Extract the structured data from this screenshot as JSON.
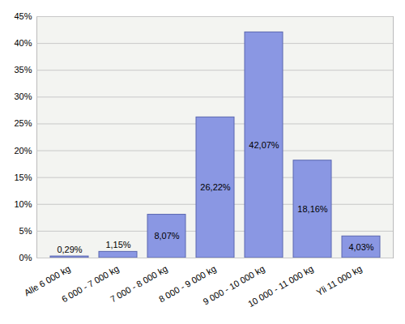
{
  "chart_data": {
    "type": "bar",
    "categories": [
      "Alle 6 000 kg",
      "6 000 - 7 000 kg",
      "7 000 - 8 000 kg",
      "8 000 - 9 000 kg",
      "9 000 - 10 000 kg",
      "10 000 - 11 000 kg",
      "Yli 11 000 kg"
    ],
    "values": [
      0.29,
      1.15,
      8.07,
      26.22,
      42.07,
      18.16,
      4.03
    ],
    "value_labels": [
      "0,29%",
      "1,15%",
      "8,07%",
      "26,22%",
      "42,07%",
      "18,16%",
      "4,03%"
    ],
    "color": "#8a97e3",
    "ylim": [
      0,
      45
    ],
    "yticks": [
      {
        "value": 0,
        "label": "0%"
      },
      {
        "value": 5,
        "label": "5%"
      },
      {
        "value": 10,
        "label": "10%"
      },
      {
        "value": 15,
        "label": "15%"
      },
      {
        "value": 20,
        "label": "20%"
      },
      {
        "value": 25,
        "label": "25%"
      },
      {
        "value": 30,
        "label": "30%"
      },
      {
        "value": 35,
        "label": "35%"
      },
      {
        "value": 40,
        "label": "40%"
      },
      {
        "value": 45,
        "label": "45%"
      }
    ],
    "grid": true,
    "data_labels": true
  }
}
